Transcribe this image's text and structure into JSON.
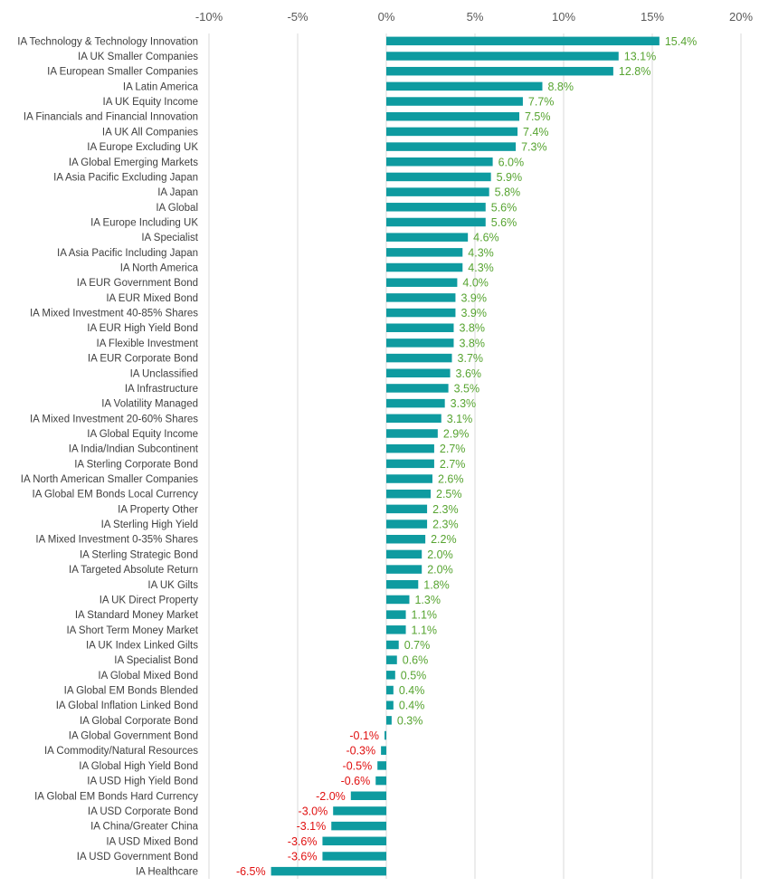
{
  "chart_data": {
    "type": "bar",
    "orientation": "horizontal",
    "title": "",
    "xlabel": "",
    "ylabel": "",
    "xlim": [
      -10,
      20
    ],
    "x_ticks": [
      "-10%",
      "-5%",
      "0%",
      "5%",
      "10%",
      "15%",
      "20%"
    ],
    "x_tick_values": [
      -10,
      -5,
      0,
      5,
      10,
      15,
      20
    ],
    "grid": "vertical",
    "legend": "none",
    "bar_color": "#0e9ba0",
    "positive_label_color": "#57a431",
    "negative_label_color": "#e01010",
    "categories": [
      "IA Technology & Technology Innovation",
      "IA UK Smaller Companies",
      "IA European Smaller Companies",
      "IA Latin America",
      "IA UK Equity Income",
      "IA Financials and Financial Innovation",
      "IA UK All Companies",
      "IA Europe Excluding UK",
      "IA Global Emerging Markets",
      "IA Asia Pacific Excluding Japan",
      "IA Japan",
      "IA Global",
      "IA Europe Including UK",
      "IA Specialist",
      "IA Asia Pacific Including Japan",
      "IA North America",
      "IA EUR Government Bond",
      "IA EUR Mixed Bond",
      "IA Mixed Investment 40-85% Shares",
      "IA EUR High Yield Bond",
      "IA Flexible Investment",
      "IA EUR Corporate Bond",
      "IA Unclassified",
      "IA Infrastructure",
      "IA Volatility Managed",
      "IA Mixed Investment 20-60% Shares",
      "IA Global Equity Income",
      "IA India/Indian Subcontinent",
      "IA Sterling Corporate Bond",
      "IA North American Smaller Companies",
      "IA Global EM Bonds Local Currency",
      "IA Property Other",
      "IA Sterling High Yield",
      "IA Mixed Investment 0-35% Shares",
      "IA Sterling Strategic Bond",
      "IA Targeted Absolute Return",
      "IA UK Gilts",
      "IA UK Direct Property",
      "IA Standard Money Market",
      "IA Short Term Money Market",
      "IA UK Index Linked Gilts",
      "IA Specialist Bond",
      "IA Global Mixed Bond",
      "IA Global EM Bonds Blended",
      "IA Global Inflation Linked Bond",
      "IA Global Corporate Bond",
      "IA Global Government Bond",
      "IA Commodity/Natural Resources",
      "IA Global High Yield Bond",
      "IA USD High Yield Bond",
      "IA Global EM Bonds Hard Currency",
      "IA USD Corporate Bond",
      "IA China/Greater China",
      "IA USD Mixed Bond",
      "IA USD Government Bond",
      "IA Healthcare"
    ],
    "values": [
      15.4,
      13.1,
      12.8,
      8.8,
      7.7,
      7.5,
      7.4,
      7.3,
      6.0,
      5.9,
      5.8,
      5.6,
      5.6,
      4.6,
      4.3,
      4.3,
      4.0,
      3.9,
      3.9,
      3.8,
      3.8,
      3.7,
      3.6,
      3.5,
      3.3,
      3.1,
      2.9,
      2.7,
      2.7,
      2.6,
      2.5,
      2.3,
      2.3,
      2.2,
      2.0,
      2.0,
      1.8,
      1.3,
      1.1,
      1.1,
      0.7,
      0.6,
      0.5,
      0.4,
      0.4,
      0.3,
      -0.1,
      -0.3,
      -0.5,
      -0.6,
      -2.0,
      -3.0,
      -3.1,
      -3.6,
      -3.6,
      -6.5
    ],
    "data_labels": [
      "15.4%",
      "13.1%",
      "12.8%",
      "8.8%",
      "7.7%",
      "7.5%",
      "7.4%",
      "7.3%",
      "6.0%",
      "5.9%",
      "5.8%",
      "5.6%",
      "5.6%",
      "4.6%",
      "4.3%",
      "4.3%",
      "4.0%",
      "3.9%",
      "3.9%",
      "3.8%",
      "3.8%",
      "3.7%",
      "3.6%",
      "3.5%",
      "3.3%",
      "3.1%",
      "2.9%",
      "2.7%",
      "2.7%",
      "2.6%",
      "2.5%",
      "2.3%",
      "2.3%",
      "2.2%",
      "2.0%",
      "2.0%",
      "1.8%",
      "1.3%",
      "1.1%",
      "1.1%",
      "0.7%",
      "0.6%",
      "0.5%",
      "0.4%",
      "0.4%",
      "0.3%",
      "-0.1%",
      "-0.3%",
      "-0.5%",
      "-0.6%",
      "-2.0%",
      "-3.0%",
      "-3.1%",
      "-3.6%",
      "-3.6%",
      "-6.5%"
    ]
  }
}
